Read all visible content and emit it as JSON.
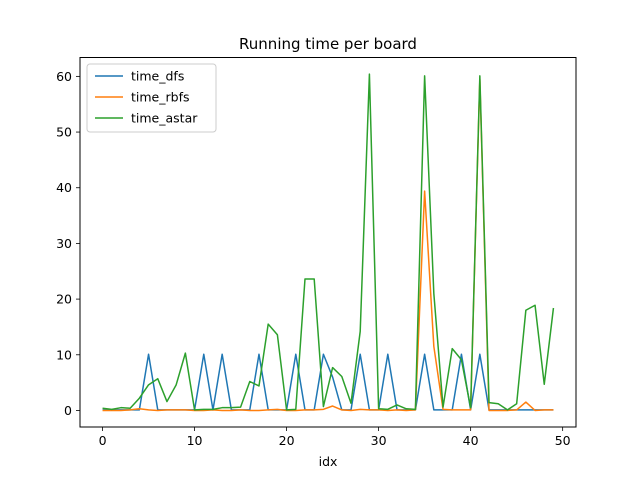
{
  "chart_data": {
    "type": "line",
    "title": "Running time per board",
    "xlabel": "idx",
    "ylabel": "",
    "xlim": [
      -2.45,
      51.45
    ],
    "ylim": [
      -2.97,
      63.39
    ],
    "xticks": [
      0,
      10,
      20,
      30,
      40,
      50
    ],
    "yticks": [
      0,
      10,
      20,
      30,
      40,
      50,
      60
    ],
    "grid": false,
    "legend_position": "top-left",
    "x": [
      0,
      1,
      2,
      3,
      4,
      5,
      6,
      7,
      8,
      9,
      10,
      11,
      12,
      13,
      14,
      15,
      16,
      17,
      18,
      19,
      20,
      21,
      22,
      23,
      24,
      25,
      26,
      27,
      28,
      29,
      30,
      31,
      32,
      33,
      34,
      35,
      36,
      37,
      38,
      39,
      40,
      41,
      42,
      43,
      44,
      45,
      46,
      47,
      48,
      49
    ],
    "series": [
      {
        "name": "time_dfs",
        "color": "#1f77b4",
        "values": [
          0.1,
          0.1,
          0.1,
          0.1,
          0.1,
          10.1,
          0.1,
          0.1,
          0.1,
          0.1,
          0.1,
          10.1,
          0.1,
          10.1,
          0.1,
          0.1,
          0.1,
          10.1,
          0.1,
          0.1,
          0.1,
          10.1,
          0.1,
          0.1,
          10.1,
          6.0,
          0.1,
          0.1,
          10.1,
          0.1,
          0.1,
          10.1,
          0.1,
          0.1,
          0.1,
          10.1,
          0.1,
          0.1,
          0.1,
          10.1,
          0.1,
          10.1,
          0.1,
          0.1,
          0.1,
          0.1,
          0.1,
          0.1,
          0.1,
          0.1
        ]
      },
      {
        "name": "time_rbfs",
        "color": "#ff7f0e",
        "values": [
          0.0,
          0.0,
          0.0,
          0.1,
          0.3,
          0.1,
          0.0,
          0.1,
          0.1,
          0.1,
          0.0,
          0.0,
          0.1,
          0.0,
          0.0,
          0.1,
          0.0,
          0.0,
          0.1,
          0.2,
          0.0,
          0.0,
          0.1,
          0.1,
          0.2,
          0.8,
          0.1,
          0.0,
          0.2,
          0.1,
          0.1,
          0.0,
          0.1,
          0.0,
          0.1,
          39.4,
          11.5,
          0.2,
          0.1,
          0.1,
          0.1,
          59.5,
          0.0,
          0.0,
          0.0,
          0.1,
          1.5,
          0.0,
          0.1,
          0.1
        ]
      },
      {
        "name": "time_astar",
        "color": "#2ca02c",
        "values": [
          0.4,
          0.2,
          0.5,
          0.4,
          2.2,
          4.6,
          5.7,
          1.6,
          4.6,
          10.3,
          0.1,
          0.2,
          0.2,
          0.5,
          0.5,
          0.6,
          5.2,
          4.4,
          15.5,
          13.6,
          0.1,
          0.2,
          23.6,
          23.6,
          0.7,
          7.7,
          6.1,
          1.3,
          14.2,
          60.4,
          0.3,
          0.2,
          1.0,
          0.3,
          0.2,
          60.1,
          21.0,
          0.6,
          11.1,
          9.1,
          0.5,
          60.1,
          1.4,
          1.2,
          0.1,
          1.2,
          18.0,
          18.9,
          4.7,
          18.4
        ]
      }
    ]
  }
}
